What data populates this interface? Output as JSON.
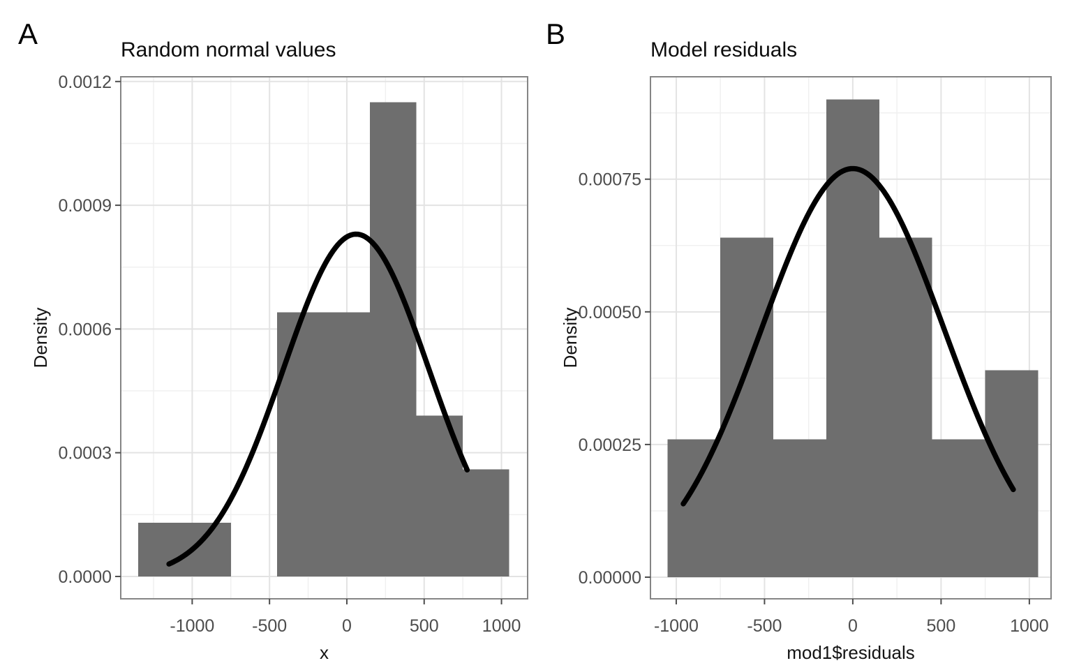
{
  "figure": {
    "background": "#ffffff"
  },
  "styles": {
    "bar_fill": "#6e6e6e",
    "curve_color": "#000000",
    "grid_major_color": "#e3e3e3",
    "grid_minor_color": "#f0f0f0",
    "panel_border_color": "#858585",
    "tick_mark_color": "#4d4d4d",
    "tick_label_color": "#4d4d4d",
    "title_color": "#0d0d0d"
  },
  "chart_data": [
    {
      "type": "bar",
      "subtype": "histogram-with-normal-curve",
      "panel_tag": "A",
      "title": "Random normal values",
      "xlabel": "x",
      "ylabel": "Density",
      "grid": true,
      "legend": false,
      "bin_width": 300,
      "bins": [
        {
          "x0": -1350,
          "x1": -1050,
          "density": 0.00013
        },
        {
          "x0": -1050,
          "x1": -750,
          "density": 0.00013
        },
        {
          "x0": -750,
          "x1": -450,
          "density": 0
        },
        {
          "x0": -450,
          "x1": -150,
          "density": 0.00064
        },
        {
          "x0": -150,
          "x1": 150,
          "density": 0.00064
        },
        {
          "x0": 150,
          "x1": 450,
          "density": 0.00115
        },
        {
          "x0": 450,
          "x1": 750,
          "density": 0.00039
        },
        {
          "x0": 750,
          "x1": 1050,
          "density": 0.00026
        }
      ],
      "curve": {
        "shape": "normal-density",
        "mean": 60,
        "sd": 470,
        "peak_density": 0.00083,
        "x_start": -1150,
        "x_end": 778
      },
      "xlim": [
        -1462,
        1169
      ],
      "ylim": [
        -5.42e-05,
        0.0012115
      ],
      "x_ticks": [
        {
          "v": -1000,
          "label": "-1000"
        },
        {
          "v": -500,
          "label": "-500"
        },
        {
          "v": 0,
          "label": "0"
        },
        {
          "v": 500,
          "label": "500"
        },
        {
          "v": 1000,
          "label": "1000"
        }
      ],
      "y_ticks": [
        {
          "v": 0,
          "label": "0.0000"
        },
        {
          "v": 0.0003,
          "label": "0.0003"
        },
        {
          "v": 0.0006,
          "label": "0.0006"
        },
        {
          "v": 0.0009,
          "label": "0.0009"
        },
        {
          "v": 0.0012,
          "label": "0.0012"
        }
      ]
    },
    {
      "type": "bar",
      "subtype": "histogram-with-normal-curve",
      "panel_tag": "B",
      "title": "Model residuals",
      "xlabel": "mod1$residuals",
      "ylabel": "Density",
      "grid": true,
      "legend": false,
      "bin_width": 300,
      "bins": [
        {
          "x0": -1050,
          "x1": -750,
          "density": 0.00026
        },
        {
          "x0": -750,
          "x1": -450,
          "density": 0.00064
        },
        {
          "x0": -450,
          "x1": -150,
          "density": 0.00026
        },
        {
          "x0": -150,
          "x1": 150,
          "density": 0.0009
        },
        {
          "x0": 150,
          "x1": 450,
          "density": 0.00064
        },
        {
          "x0": 450,
          "x1": 750,
          "density": 0.00026
        },
        {
          "x0": 750,
          "x1": 1050,
          "density": 0.00039
        }
      ],
      "curve": {
        "shape": "normal-density",
        "mean": 0,
        "sd": 518,
        "peak_density": 0.00077,
        "x_start": -960,
        "x_end": 909
      },
      "xlim": [
        -1146,
        1123
      ],
      "ylim": [
        -4.08e-05,
        0.000943
      ],
      "x_ticks": [
        {
          "v": -1000,
          "label": "-1000"
        },
        {
          "v": -500,
          "label": "-500"
        },
        {
          "v": 0,
          "label": "0"
        },
        {
          "v": 500,
          "label": "500"
        },
        {
          "v": 1000,
          "label": "1000"
        }
      ],
      "y_ticks": [
        {
          "v": 0,
          "label": "0.00000"
        },
        {
          "v": 0.00025,
          "label": "0.00025"
        },
        {
          "v": 0.0005,
          "label": "0.00050"
        },
        {
          "v": 0.00075,
          "label": "0.00075"
        }
      ]
    }
  ]
}
